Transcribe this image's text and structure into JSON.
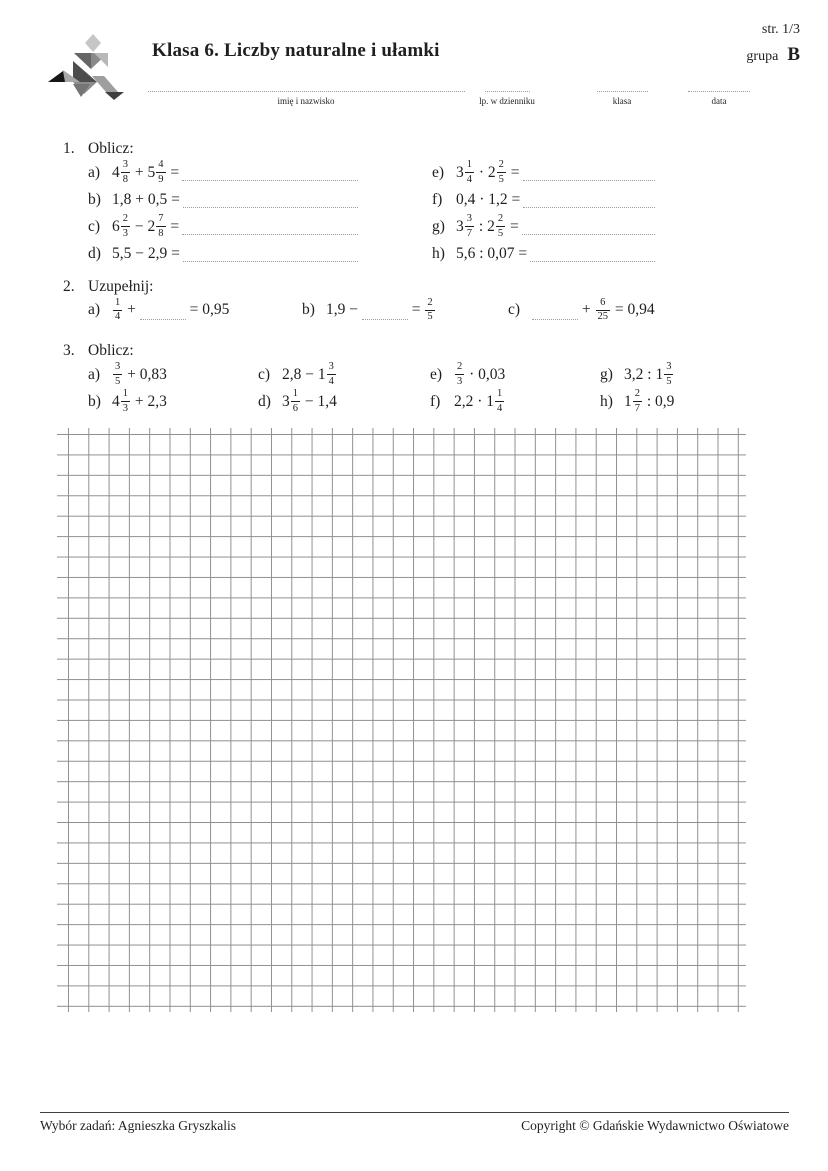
{
  "page": {
    "title": "Klasa 6. Liczby naturalne i ułamki",
    "page_number": "str. 1/3",
    "group_label": "grupa",
    "group_value": "B"
  },
  "colors": {
    "ink": "#1f1f1f",
    "grid_line": "#909090",
    "dotted_line": "#9a9a9a",
    "footer_rule": "#3f3f3f"
  },
  "header_fields": [
    {
      "label": "imię i nazwisko"
    },
    {
      "label": "lp. w dzienniku"
    },
    {
      "label": "klasa"
    },
    {
      "label": "data"
    }
  ],
  "exercises": [
    {
      "number": "1.",
      "title": "Oblicz:",
      "items": [
        {
          "label": "a)",
          "tokens": [
            {
              "t": "mix",
              "w": "4",
              "n": "3",
              "d": "8"
            },
            {
              "t": "txt",
              "v": " + "
            },
            {
              "t": "mix",
              "w": "5",
              "n": "4",
              "d": "9"
            },
            {
              "t": "txt",
              "v": " ="
            },
            {
              "t": "ans"
            }
          ]
        },
        {
          "label": "b)",
          "tokens": [
            {
              "t": "txt",
              "v": "1,8 + 0,5 ="
            },
            {
              "t": "ans"
            }
          ]
        },
        {
          "label": "c)",
          "tokens": [
            {
              "t": "mix",
              "w": "6",
              "n": "2",
              "d": "3"
            },
            {
              "t": "txt",
              "v": " − "
            },
            {
              "t": "mix",
              "w": "2",
              "n": "7",
              "d": "8"
            },
            {
              "t": "txt",
              "v": " ="
            },
            {
              "t": "ans"
            }
          ]
        },
        {
          "label": "d)",
          "tokens": [
            {
              "t": "txt",
              "v": "5,5 − 2,9 ="
            },
            {
              "t": "ans"
            }
          ]
        },
        {
          "label": "e)",
          "tokens": [
            {
              "t": "mix",
              "w": "3",
              "n": "1",
              "d": "4"
            },
            {
              "t": "txt",
              "v": " · "
            },
            {
              "t": "mix",
              "w": "2",
              "n": "2",
              "d": "5"
            },
            {
              "t": "txt",
              "v": " ="
            },
            {
              "t": "ans"
            }
          ]
        },
        {
          "label": "f)",
          "tokens": [
            {
              "t": "txt",
              "v": "0,4 · 1,2 ="
            },
            {
              "t": "ans"
            }
          ]
        },
        {
          "label": "g)",
          "tokens": [
            {
              "t": "mix",
              "w": "3",
              "n": "3",
              "d": "7"
            },
            {
              "t": "txt",
              "v": " : "
            },
            {
              "t": "mix",
              "w": "2",
              "n": "2",
              "d": "5"
            },
            {
              "t": "txt",
              "v": " ="
            },
            {
              "t": "ans"
            }
          ]
        },
        {
          "label": "h)",
          "tokens": [
            {
              "t": "txt",
              "v": "5,6 : 0,07 ="
            },
            {
              "t": "ans"
            }
          ]
        }
      ]
    },
    {
      "number": "2.",
      "title": "Uzupełnij:",
      "items": [
        {
          "label": "a)",
          "tokens": [
            {
              "t": "frac",
              "n": "1",
              "d": "4"
            },
            {
              "t": "txt",
              "v": " + "
            },
            {
              "t": "blank"
            },
            {
              "t": "txt",
              "v": " = 0,95"
            }
          ]
        },
        {
          "label": "b)",
          "tokens": [
            {
              "t": "txt",
              "v": "1,9 − "
            },
            {
              "t": "blank"
            },
            {
              "t": "txt",
              "v": " = "
            },
            {
              "t": "frac",
              "n": "2",
              "d": "5"
            }
          ]
        },
        {
          "label": "c)",
          "tokens": [
            {
              "t": "blank"
            },
            {
              "t": "txt",
              "v": " + "
            },
            {
              "t": "frac",
              "n": "6",
              "d": "25"
            },
            {
              "t": "txt",
              "v": " = 0,94"
            }
          ]
        }
      ]
    },
    {
      "number": "3.",
      "title": "Oblicz:",
      "items": [
        {
          "label": "a)",
          "tokens": [
            {
              "t": "frac",
              "n": "3",
              "d": "5"
            },
            {
              "t": "txt",
              "v": " + 0,83"
            }
          ]
        },
        {
          "label": "b)",
          "tokens": [
            {
              "t": "mix",
              "w": "4",
              "n": "1",
              "d": "3"
            },
            {
              "t": "txt",
              "v": " + 2,3"
            }
          ]
        },
        {
          "label": "c)",
          "tokens": [
            {
              "t": "txt",
              "v": "2,8 − "
            },
            {
              "t": "mix",
              "w": "1",
              "n": "3",
              "d": "4"
            }
          ]
        },
        {
          "label": "d)",
          "tokens": [
            {
              "t": "mix",
              "w": "3",
              "n": "1",
              "d": "6"
            },
            {
              "t": "txt",
              "v": " − 1,4"
            }
          ]
        },
        {
          "label": "e)",
          "tokens": [
            {
              "t": "frac",
              "n": "2",
              "d": "3"
            },
            {
              "t": "txt",
              "v": " · 0,03"
            }
          ]
        },
        {
          "label": "f)",
          "tokens": [
            {
              "t": "txt",
              "v": "2,2 · "
            },
            {
              "t": "mix",
              "w": "1",
              "n": "1",
              "d": "4"
            }
          ]
        },
        {
          "label": "g)",
          "tokens": [
            {
              "t": "txt",
              "v": "3,2 : "
            },
            {
              "t": "mix",
              "w": "1",
              "n": "3",
              "d": "5"
            }
          ]
        },
        {
          "label": "h)",
          "tokens": [
            {
              "t": "mix",
              "w": "1",
              "n": "2",
              "d": "7"
            },
            {
              "t": "txt",
              "v": " : 0,9"
            }
          ]
        }
      ]
    }
  ],
  "footer": {
    "left": "Wybór zadań: Agnieszka Gryszkalis",
    "right": "Copyright © Gdańskie Wydawnictwo Oświatowe"
  }
}
